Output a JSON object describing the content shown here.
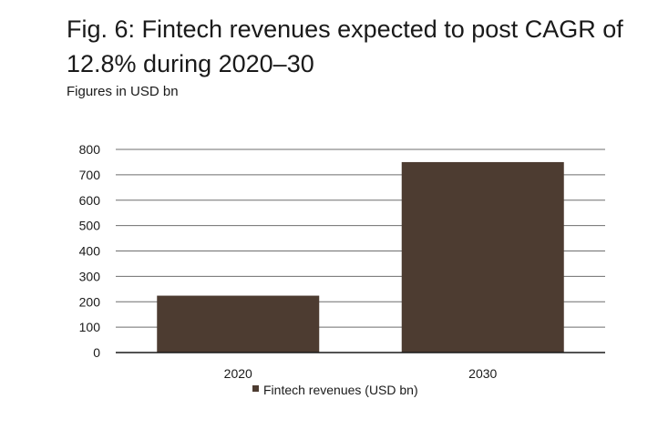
{
  "chart_data": {
    "type": "bar",
    "title": "Fig. 6: Fintech revenues expected to post CAGR of 12.8% during 2020–30",
    "subtitle": "Figures in USD bn",
    "categories": [
      "2020",
      "2030"
    ],
    "series": [
      {
        "name": "Fintech revenues (USD bn)",
        "values": [
          224,
          750
        ],
        "color": "#4d3c31"
      }
    ],
    "ylim": [
      0,
      800
    ],
    "yticks": [
      0,
      100,
      200,
      300,
      400,
      500,
      600,
      700,
      800
    ],
    "grid": true,
    "legend": "bottom-center"
  }
}
